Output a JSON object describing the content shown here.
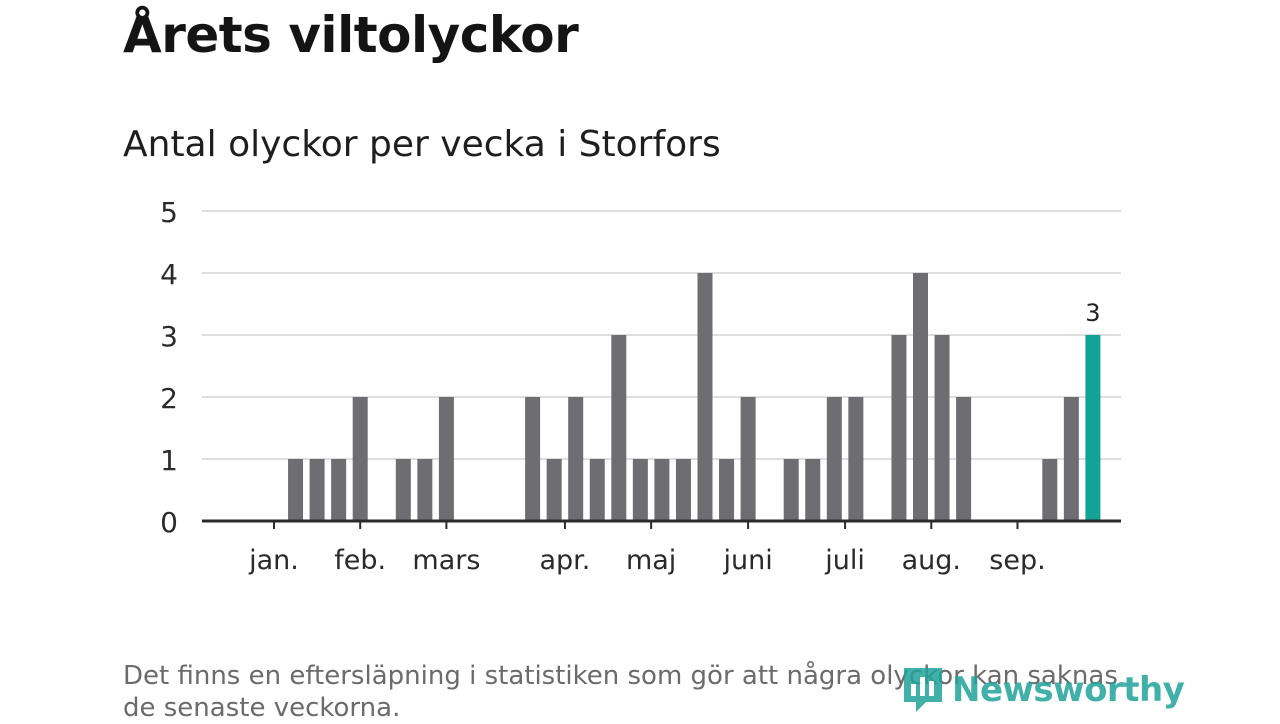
{
  "title": "Årets viltolyckor",
  "subtitle": "Antal olyckor per vecka i Storfors",
  "note": "Det finns en eftersläpning i statistiken som gör att några olyckor kan saknas de senaste veckorna.",
  "brand": {
    "name": "Newsworthy",
    "icon": "newsworthy-logo-icon",
    "color": "#1fa39a"
  },
  "colors": {
    "bar": "#6e6d72",
    "highlight": "#12a396",
    "grid": "#dedede",
    "axis": "#2b2b2b"
  },
  "chart_data": {
    "type": "bar",
    "title": "Antal olyckor per vecka i Storfors",
    "xlabel": "",
    "ylabel": "",
    "ylim": [
      0,
      5
    ],
    "yticks": [
      0,
      1,
      2,
      3,
      4,
      5
    ],
    "grid": true,
    "x_unit": "week",
    "values": [
      0,
      1,
      1,
      1,
      2,
      0,
      1,
      1,
      2,
      0,
      0,
      0,
      2,
      1,
      2,
      1,
      3,
      1,
      1,
      1,
      4,
      1,
      2,
      0,
      1,
      1,
      2,
      2,
      0,
      3,
      4,
      3,
      2,
      0,
      0,
      0,
      1,
      2,
      3
    ],
    "month_labels": [
      {
        "label": "jan.",
        "week": 1
      },
      {
        "label": "feb.",
        "week": 5
      },
      {
        "label": "mars",
        "week": 9
      },
      {
        "label": "apr.",
        "week": 14.5
      },
      {
        "label": "maj",
        "week": 18.5
      },
      {
        "label": "juni",
        "week": 23
      },
      {
        "label": "juli",
        "week": 27.5
      },
      {
        "label": "aug.",
        "week": 31.5
      },
      {
        "label": "sep.",
        "week": 35.5
      }
    ],
    "highlight_week": 39,
    "highlight_label": "3"
  }
}
